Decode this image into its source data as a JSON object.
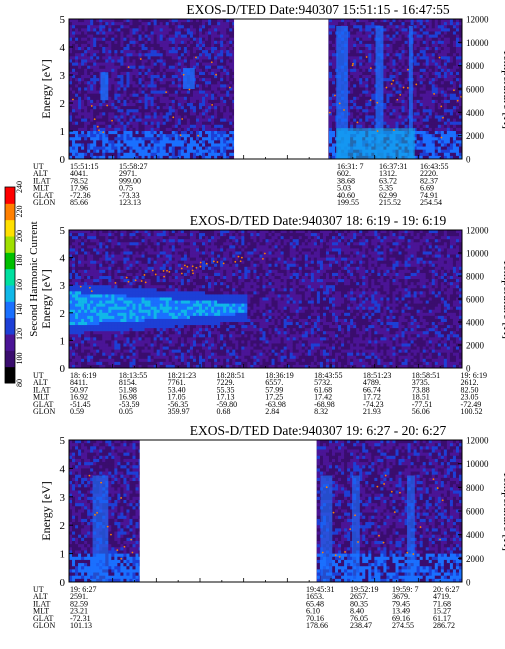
{
  "chart_data": [
    {
      "type": "heatmap",
      "title": "EXOS-D/TED   Date:940307  15:51:15 - 16:47:55",
      "ylabel": "Energy [eV]",
      "y2label": "Temperature [K]",
      "ylim": [
        0,
        5
      ],
      "y2lim": [
        0,
        12000
      ],
      "yticks": [
        "0",
        "1",
        "2",
        "3",
        "4",
        "5"
      ],
      "y2ticks": [
        "0",
        "2000",
        "4000",
        "6000",
        "8000",
        "10000",
        "12000"
      ],
      "data_gaps": [
        [
          0.42,
          0.66
        ]
      ],
      "rows": [
        {
          "label": "UT",
          "values": [
            "15:51:15",
            "15:58:27",
            "16:31: 7",
            "16:37:31",
            "16:43:55"
          ]
        },
        {
          "label": "ALT",
          "values": [
            "4041.",
            "2971.",
            "602.",
            "1312.",
            "2220."
          ]
        },
        {
          "label": "ILAT",
          "values": [
            "78.52",
            "999.00",
            "38.68",
            "63.72",
            "82.37"
          ]
        },
        {
          "label": "MLT",
          "values": [
            "17.96",
            "0.75",
            "5.03",
            "5.35",
            "6.69"
          ]
        },
        {
          "label": "GLAT",
          "values": [
            "-72.36",
            "-73.33",
            "40.60",
            "62.99",
            "74.91"
          ]
        },
        {
          "label": "GLON",
          "values": [
            "85.66",
            "123.13",
            "199.55",
            "215.52",
            "254.54"
          ]
        }
      ]
    },
    {
      "type": "heatmap",
      "title": "EXOS-D/TED   Date:940307  18: 6:19 - 19: 6:19",
      "ylabel": "Energy [eV]",
      "y2label": "Temperature [K]",
      "ylim": [
        0,
        5
      ],
      "y2lim": [
        0,
        12000
      ],
      "yticks": [
        "0",
        "1",
        "2",
        "3",
        "4",
        "5"
      ],
      "y2ticks": [
        "0",
        "2000",
        "4000",
        "6000",
        "8000",
        "10000",
        "12000"
      ],
      "colorbar": {
        "label": "Second Harmonic Current",
        "ticks": [
          "80",
          "100",
          "120",
          "140",
          "160",
          "180",
          "200",
          "220",
          "240"
        ]
      },
      "rows": [
        {
          "label": "UT",
          "values": [
            "18: 6:19",
            "18:13:55",
            "18:21:23",
            "18:28:51",
            "18:36:19",
            "18:43:55",
            "18:51:23",
            "18:58:51",
            "19: 6:19"
          ]
        },
        {
          "label": "ALT",
          "values": [
            "8411.",
            "8154.",
            "7761.",
            "7229.",
            "6557.",
            "5732.",
            "4789.",
            "3735.",
            "2612."
          ]
        },
        {
          "label": "ILAT",
          "values": [
            "50.97",
            "51.98",
            "53.40",
            "55.35",
            "57.99",
            "61.68",
            "66.74",
            "73.88",
            "82.50"
          ]
        },
        {
          "label": "MLT",
          "values": [
            "16.92",
            "16.98",
            "17.05",
            "17.13",
            "17.25",
            "17.42",
            "17.72",
            "18.51",
            "23.05"
          ]
        },
        {
          "label": "GLAT",
          "values": [
            "-51.45",
            "-53.59",
            "-56.35",
            "-59.80",
            "-63.98",
            "-68.98",
            "-74.23",
            "-77.51",
            "-72.49"
          ]
        },
        {
          "label": "GLON",
          "values": [
            "0.59",
            "0.05",
            "359.97",
            "0.68",
            "2.84",
            "8.32",
            "21.93",
            "56.06",
            "100.52"
          ]
        }
      ]
    },
    {
      "type": "heatmap",
      "title": "EXOS-D/TED   Date:940307  19: 6:27 - 20: 6:27",
      "ylabel": "Energy [eV]",
      "y2label": "Temperature [K]",
      "ylim": [
        0,
        5
      ],
      "y2lim": [
        0,
        12000
      ],
      "yticks": [
        "0",
        "1",
        "2",
        "3",
        "4",
        "5"
      ],
      "y2ticks": [
        "0",
        "2000",
        "4000",
        "6000",
        "8000",
        "10000",
        "12000"
      ],
      "data_gaps": [
        [
          0.18,
          0.63
        ]
      ],
      "rows": [
        {
          "label": "UT",
          "values": [
            "19: 6:27",
            "19:45:31",
            "19:52:19",
            "19:59: 7",
            "20: 6:27"
          ]
        },
        {
          "label": "ALT",
          "values": [
            "2591.",
            "1653.",
            "2657.",
            "3679.",
            "4719."
          ]
        },
        {
          "label": "ILAT",
          "values": [
            "82.59",
            "65.48",
            "80.35",
            "79.45",
            "71.68"
          ]
        },
        {
          "label": "MLT",
          "values": [
            "23.21",
            "6.10",
            "8.40",
            "13.49",
            "15.27"
          ]
        },
        {
          "label": "GLAT",
          "values": [
            "-72.31",
            "70.16",
            "76.05",
            "69.16",
            "61.17"
          ]
        },
        {
          "label": "GLON",
          "values": [
            "101.13",
            "178.66",
            "238.47",
            "274.55",
            "286.72"
          ]
        }
      ]
    }
  ],
  "colors": {
    "background_purple": "#3a1a7a",
    "scale": [
      "#000000",
      "#3a0d6e",
      "#4b1496",
      "#1d3fd6",
      "#1a70ff",
      "#10b8e8",
      "#00e0a0",
      "#00c000",
      "#a0e000",
      "#ffe000",
      "#ff8000",
      "#ff0000"
    ]
  }
}
